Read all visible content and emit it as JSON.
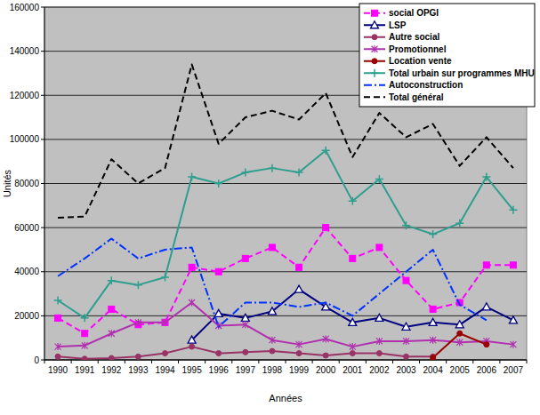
{
  "chart_data": {
    "type": "line",
    "x_label": "Années",
    "y_label": "Unités",
    "categories": [
      "1990",
      "1991",
      "1992",
      "1993",
      "1994",
      "1995",
      "1996",
      "1997",
      "1998",
      "1999",
      "2000",
      "2001",
      "2002",
      "2003",
      "2004",
      "2005",
      "2006",
      "2007"
    ],
    "ylim": [
      0,
      160000
    ],
    "yticks": [
      0,
      20000,
      40000,
      60000,
      80000,
      100000,
      120000,
      140000,
      160000
    ],
    "grid": true,
    "legend": "upper right",
    "series": [
      {
        "name": "social OPGI",
        "color": "#ff00ff",
        "marker": "square",
        "line_style": "dashed",
        "values": [
          19000,
          12000,
          23000,
          16000,
          17000,
          42000,
          40000,
          46000,
          51000,
          42000,
          60000,
          46000,
          51000,
          36000,
          23000,
          26000,
          43000,
          43000
        ]
      },
      {
        "name": "LSP",
        "color": "#000080",
        "marker": "triangle",
        "line_style": "solid",
        "values": [
          null,
          null,
          null,
          null,
          null,
          9000,
          21000,
          19000,
          22000,
          32000,
          24000,
          17000,
          19000,
          15000,
          17000,
          16000,
          24000,
          18000
        ]
      },
      {
        "name": "Autre social",
        "color": "#993366",
        "marker": "circle",
        "line_style": "solid",
        "values": [
          1500,
          500,
          800,
          1500,
          3000,
          6000,
          3000,
          3500,
          4000,
          3000,
          2000,
          3000,
          3000,
          1500,
          1500,
          null,
          null,
          null
        ]
      },
      {
        "name": "Promotionnel",
        "color": "#b030b0",
        "marker": "x",
        "line_style": "solid",
        "values": [
          6000,
          6500,
          12000,
          17000,
          17000,
          26000,
          15500,
          16000,
          9000,
          7000,
          9500,
          6000,
          8500,
          8500,
          9000,
          8000,
          8500,
          7000
        ]
      },
      {
        "name": "Location vente",
        "color": "#990000",
        "marker": "circle",
        "line_style": "solid",
        "values": [
          null,
          null,
          null,
          null,
          null,
          null,
          null,
          null,
          null,
          null,
          null,
          null,
          null,
          null,
          1000,
          12000,
          7000,
          null
        ]
      },
      {
        "name": "Total urbain sur programmes MHU",
        "color": "#2e9e8e",
        "marker": "plus",
        "line_style": "solid",
        "values": [
          27000,
          19000,
          36000,
          34000,
          37500,
          83000,
          80000,
          85000,
          87000,
          85000,
          95000,
          72000,
          82000,
          61000,
          57000,
          62000,
          83000,
          68000
        ]
      },
      {
        "name": "Autoconstruction",
        "color": "#0033ff",
        "marker": "none",
        "line_style": "dashdot",
        "values": [
          38000,
          46000,
          55000,
          46000,
          50000,
          51000,
          15000,
          26000,
          26000,
          24000,
          26000,
          20000,
          30000,
          40000,
          50000,
          25000,
          18000,
          null
        ]
      },
      {
        "name": "Total général",
        "color": "#000000",
        "marker": "none",
        "line_style": "dashed",
        "values": [
          64500,
          65000,
          91000,
          80000,
          87000,
          134000,
          98000,
          110000,
          113000,
          109000,
          121000,
          92000,
          112000,
          101000,
          107000,
          88000,
          101000,
          87000
        ]
      }
    ]
  }
}
